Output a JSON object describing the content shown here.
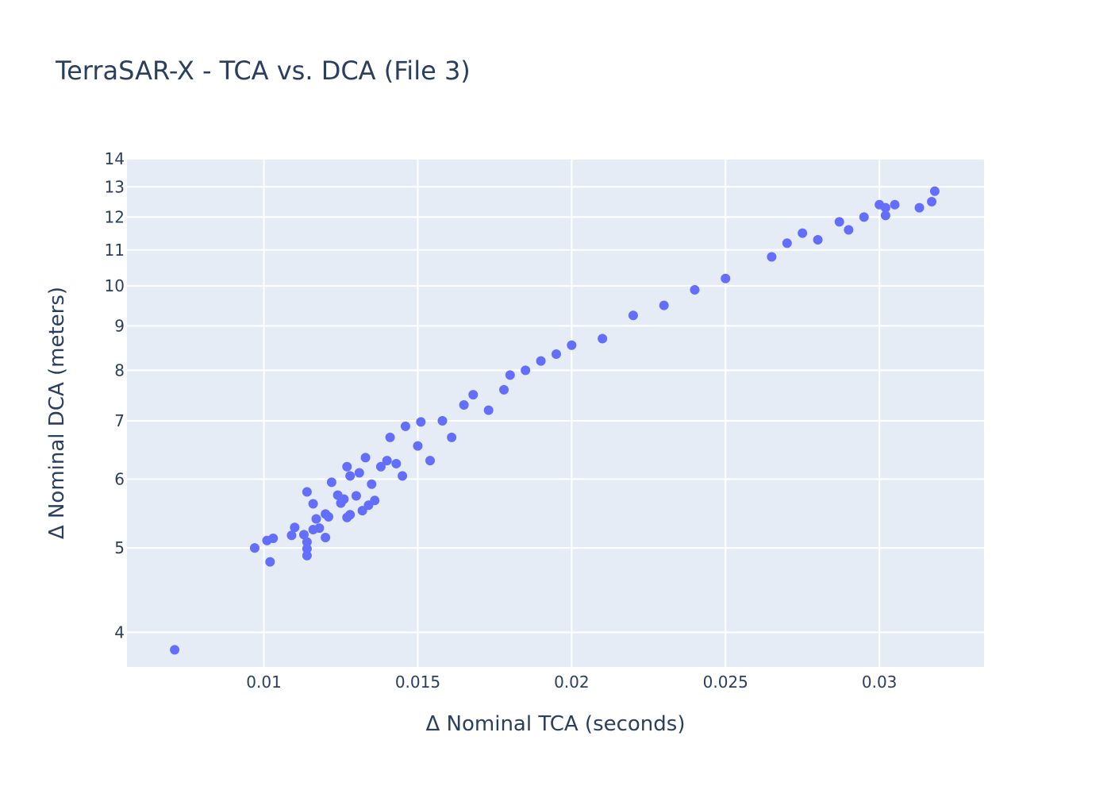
{
  "chart_data": {
    "type": "scatter",
    "title": "TerraSAR-X - TCA vs. DCA (File 3)",
    "xlabel": "Δ Nominal TCA (seconds)",
    "ylabel": "Δ Nominal DCA (meters)",
    "xlim": [
      0.00555,
      0.0334
    ],
    "ylim": [
      3.65,
      14.0
    ],
    "y_scale": "log",
    "grid": true,
    "legend": "none",
    "x_ticks": [
      0.01,
      0.015,
      0.02,
      0.025,
      0.03
    ],
    "x_tick_labels": [
      "0.01",
      "0.015",
      "0.02",
      "0.025",
      "0.03"
    ],
    "y_ticks": [
      4,
      5,
      6,
      7,
      8,
      9,
      10,
      11,
      12,
      13,
      14
    ],
    "y_tick_labels": [
      "4",
      "5",
      "6",
      "7",
      "8",
      "9",
      "10",
      "11",
      "12",
      "13",
      "14"
    ],
    "series": [
      {
        "color": "#636efa",
        "marker": "circle",
        "points": [
          [
            0.0071,
            3.82
          ],
          [
            0.0097,
            5.0
          ],
          [
            0.0101,
            5.1
          ],
          [
            0.0103,
            5.13
          ],
          [
            0.0102,
            4.82
          ],
          [
            0.0109,
            5.17
          ],
          [
            0.011,
            5.28
          ],
          [
            0.0113,
            5.18
          ],
          [
            0.0114,
            5.08
          ],
          [
            0.0114,
            4.99
          ],
          [
            0.0114,
            4.9
          ],
          [
            0.0114,
            5.8
          ],
          [
            0.0116,
            5.62
          ],
          [
            0.0116,
            5.25
          ],
          [
            0.0117,
            5.4
          ],
          [
            0.0118,
            5.27
          ],
          [
            0.012,
            5.47
          ],
          [
            0.0121,
            5.43
          ],
          [
            0.012,
            5.14
          ],
          [
            0.0122,
            5.95
          ],
          [
            0.0124,
            5.75
          ],
          [
            0.0125,
            5.63
          ],
          [
            0.0126,
            5.69
          ],
          [
            0.0127,
            6.2
          ],
          [
            0.0127,
            5.42
          ],
          [
            0.0128,
            5.46
          ],
          [
            0.0128,
            6.05
          ],
          [
            0.013,
            5.74
          ],
          [
            0.0131,
            6.1
          ],
          [
            0.0132,
            5.52
          ],
          [
            0.0133,
            6.35
          ],
          [
            0.0134,
            5.6
          ],
          [
            0.0135,
            5.92
          ],
          [
            0.0136,
            5.67
          ],
          [
            0.0138,
            6.2
          ],
          [
            0.014,
            6.3
          ],
          [
            0.0141,
            6.7
          ],
          [
            0.0143,
            6.25
          ],
          [
            0.0145,
            6.05
          ],
          [
            0.0146,
            6.9
          ],
          [
            0.015,
            6.55
          ],
          [
            0.0151,
            6.98
          ],
          [
            0.0154,
            6.3
          ],
          [
            0.0158,
            7.0
          ],
          [
            0.0161,
            6.7
          ],
          [
            0.0165,
            7.3
          ],
          [
            0.0168,
            7.5
          ],
          [
            0.0173,
            7.2
          ],
          [
            0.0178,
            7.6
          ],
          [
            0.018,
            7.9
          ],
          [
            0.0185,
            8.0
          ],
          [
            0.019,
            8.2
          ],
          [
            0.0195,
            8.35
          ],
          [
            0.02,
            8.55
          ],
          [
            0.021,
            8.7
          ],
          [
            0.022,
            9.25
          ],
          [
            0.023,
            9.5
          ],
          [
            0.024,
            9.9
          ],
          [
            0.025,
            10.2
          ],
          [
            0.0265,
            10.8
          ],
          [
            0.027,
            11.2
          ],
          [
            0.0275,
            11.5
          ],
          [
            0.028,
            11.3
          ],
          [
            0.0287,
            11.85
          ],
          [
            0.029,
            11.6
          ],
          [
            0.0295,
            12.0
          ],
          [
            0.03,
            12.4
          ],
          [
            0.0302,
            12.3
          ],
          [
            0.0302,
            12.05
          ],
          [
            0.0305,
            12.4
          ],
          [
            0.0313,
            12.3
          ],
          [
            0.0317,
            12.5
          ],
          [
            0.0318,
            12.85
          ]
        ]
      }
    ]
  }
}
